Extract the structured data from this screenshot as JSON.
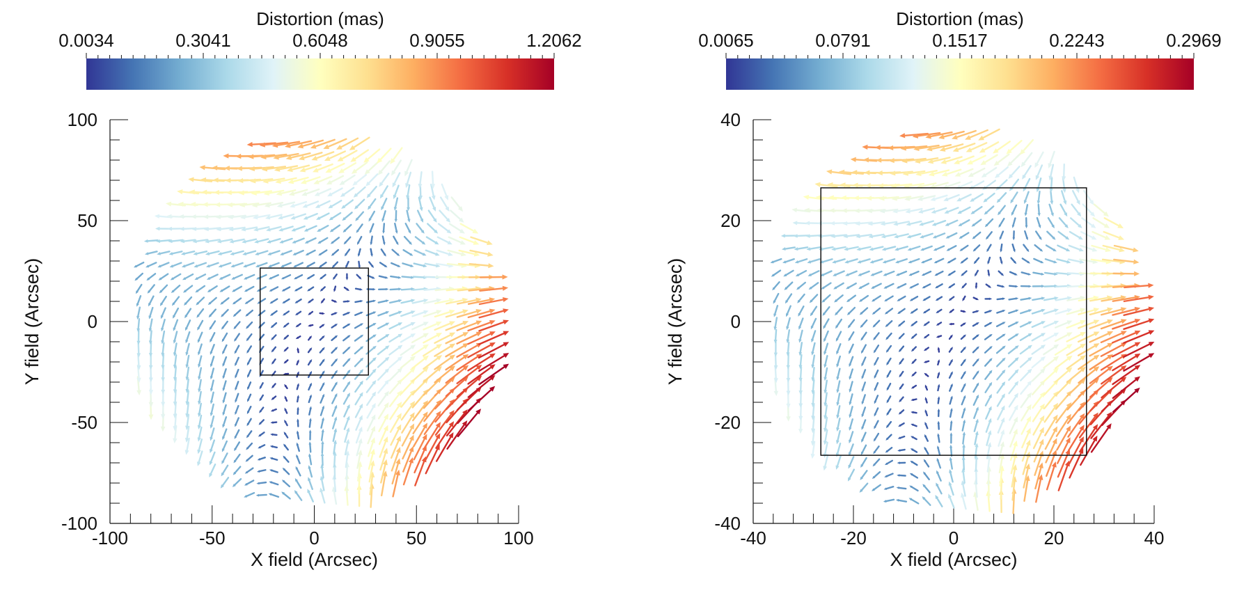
{
  "colors": {
    "stops": [
      "#313695",
      "#4575b4",
      "#74add1",
      "#abd9e9",
      "#e0f3f8",
      "#ffffbf",
      "#fee090",
      "#fdae61",
      "#f46d43",
      "#d73027",
      "#a50026"
    ],
    "axis": "#111111"
  },
  "chart_data": [
    {
      "type": "quiver",
      "colorbar": {
        "title": "Distortion (mas)",
        "min": 0.0034,
        "max": 1.2062,
        "ticks": [
          "0.0034",
          "0.3041",
          "0.6048",
          "0.9055",
          "1.2062"
        ]
      },
      "xlabel": "X field (Arcsec)",
      "ylabel": "Y field (Arcsec)",
      "xlim": [
        -100,
        100
      ],
      "ylim": [
        -100,
        100
      ],
      "xticks": [
        "-100",
        "-50",
        "0",
        "50",
        "100"
      ],
      "yticks": [
        "-100",
        "-50",
        "0",
        "50",
        "100"
      ],
      "field_radius": 92,
      "grid_spacing": 6,
      "pattern": {
        "r0": 30,
        "shear": 0.9,
        "stretch": 0.7,
        "rot": 1.0,
        "elong": 0.2
      },
      "box": {
        "x": [
          -26.5,
          26.5
        ],
        "y": [
          -26.5,
          26.5
        ]
      }
    },
    {
      "type": "quiver",
      "colorbar": {
        "title": "Distortion (mas)",
        "min": 0.0065,
        "max": 0.2969,
        "ticks": [
          "0.0065",
          "0.0791",
          "0.1517",
          "0.2243",
          "0.2969"
        ]
      },
      "xlabel": "X field (Arcsec)",
      "ylabel": "Y field (Arcsec)",
      "xlim": [
        -40,
        40
      ],
      "ylim": [
        -40,
        40
      ],
      "xticks": [
        "-40",
        "-20",
        "0",
        "20",
        "40"
      ],
      "yticks": [
        "-40",
        "-20",
        "0",
        "20",
        "40"
      ],
      "field_radius": 38,
      "grid_spacing": 2.5,
      "pattern": {
        "r0": 12,
        "shear": 0.9,
        "stretch": 0.75,
        "rot": 1.0,
        "elong": 0.3
      },
      "box": {
        "x": [
          -26.5,
          26.5
        ],
        "y": [
          -26.5,
          26.5
        ]
      }
    }
  ]
}
